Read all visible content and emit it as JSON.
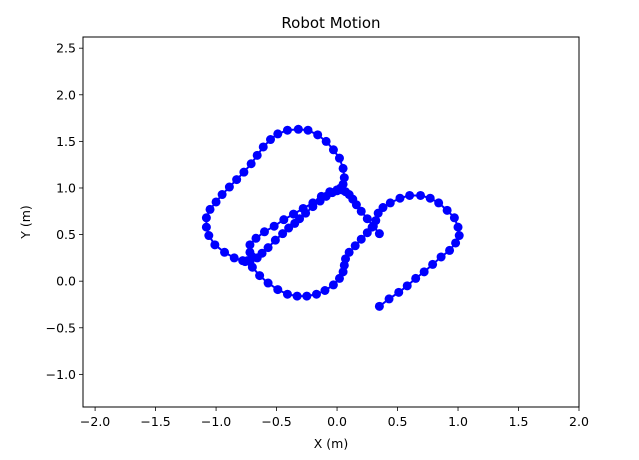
{
  "chart_data": {
    "type": "line",
    "title": "Robot Motion",
    "xlabel": "X (m)",
    "ylabel": "Y (m)",
    "xlim": [
      -2.1,
      2.0
    ],
    "ylim": [
      -1.35,
      2.62
    ],
    "xticks": [
      -2.0,
      -1.5,
      -1.0,
      -0.5,
      0.0,
      0.5,
      1.0,
      1.5,
      2.0
    ],
    "yticks": [
      -1.0,
      -0.5,
      0.0,
      0.5,
      1.0,
      1.5,
      2.0,
      2.5
    ],
    "xtick_labels": [
      "−2.0",
      "−1.5",
      "−1.0",
      "−0.5",
      "0.0",
      "0.5",
      "1.0",
      "1.5",
      "2.0"
    ],
    "ytick_labels": [
      "−1.0",
      "−0.5",
      "0.0",
      "0.5",
      "1.0",
      "1.5",
      "2.0",
      "2.5"
    ],
    "grid": false,
    "color": "#0000ff",
    "marker": "circle",
    "series": [
      {
        "x": [
          0.35,
          0.43,
          0.51,
          0.58,
          0.65,
          0.72,
          0.79,
          0.86,
          0.93,
          0.98,
          1.01,
          1.0,
          0.97,
          0.91,
          0.84,
          0.77,
          0.69,
          0.6,
          0.52,
          0.44,
          0.38,
          0.34,
          0.32,
          0.29,
          0.25,
          0.2,
          0.15,
          0.1,
          0.07,
          0.06,
          0.05,
          0.02,
          -0.03,
          -0.1,
          -0.17,
          -0.25,
          -0.33,
          -0.41,
          -0.49,
          -0.57,
          -0.64,
          -0.7,
          -0.72,
          -0.74,
          -0.76,
          -0.78,
          -0.85,
          -0.93,
          -1.01,
          -1.06,
          -1.08,
          -1.08,
          -1.05,
          -1.0,
          -0.95,
          -0.89,
          -0.83,
          -0.77,
          -0.71,
          -0.66,
          -0.61,
          -0.55,
          -0.49,
          -0.41,
          -0.32,
          -0.24,
          -0.16,
          -0.09,
          -0.03,
          0.02,
          0.05,
          0.06,
          0.05,
          0.03,
          0.0,
          -0.04,
          -0.09,
          -0.14,
          -0.2,
          -0.26,
          -0.31,
          -0.35,
          -0.4,
          -0.45,
          -0.51,
          -0.57,
          -0.62,
          -0.66,
          -0.7,
          -0.72,
          -0.72,
          -0.67,
          -0.6,
          -0.52,
          -0.44,
          -0.36,
          -0.28,
          -0.2,
          -0.13,
          -0.06,
          0.0,
          0.04,
          0.07,
          0.1,
          0.13,
          0.16,
          0.2,
          0.25,
          0.3,
          0.35
        ],
        "y": [
          -0.27,
          -0.19,
          -0.12,
          -0.05,
          0.03,
          0.1,
          0.18,
          0.26,
          0.33,
          0.41,
          0.49,
          0.58,
          0.68,
          0.76,
          0.84,
          0.89,
          0.92,
          0.92,
          0.89,
          0.84,
          0.79,
          0.73,
          0.65,
          0.58,
          0.52,
          0.45,
          0.38,
          0.31,
          0.24,
          0.17,
          0.1,
          0.03,
          -0.04,
          -0.1,
          -0.14,
          -0.16,
          -0.16,
          -0.14,
          -0.09,
          -0.02,
          0.06,
          0.15,
          0.21,
          0.22,
          0.21,
          0.22,
          0.25,
          0.31,
          0.39,
          0.49,
          0.58,
          0.68,
          0.77,
          0.85,
          0.93,
          1.01,
          1.09,
          1.17,
          1.26,
          1.35,
          1.44,
          1.52,
          1.58,
          1.62,
          1.63,
          1.62,
          1.57,
          1.5,
          1.41,
          1.32,
          1.21,
          1.11,
          1.04,
          1.0,
          0.97,
          0.95,
          0.91,
          0.86,
          0.8,
          0.73,
          0.67,
          0.62,
          0.57,
          0.51,
          0.44,
          0.36,
          0.3,
          0.25,
          0.26,
          0.31,
          0.39,
          0.46,
          0.53,
          0.59,
          0.66,
          0.72,
          0.78,
          0.84,
          0.91,
          0.96,
          0.98,
          0.98,
          0.96,
          0.93,
          0.88,
          0.82,
          0.75,
          0.67,
          0.59,
          0.51
        ]
      }
    ]
  }
}
